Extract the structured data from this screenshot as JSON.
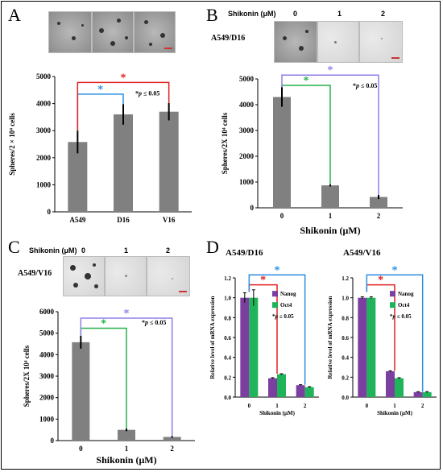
{
  "panels": {
    "A": {
      "letter": "A"
    },
    "B": {
      "letter": "B",
      "treatment_label": "Shikonin (μM)",
      "conc": [
        "0",
        "1",
        "2"
      ],
      "cell_line": "A549/D16"
    },
    "C": {
      "letter": "C",
      "treatment_label": "Shikonin (μM)",
      "conc": [
        "0",
        "1",
        "2"
      ],
      "cell_line": "A549/V16"
    },
    "D": {
      "letter": "D"
    }
  },
  "colors": {
    "bar": "#808080",
    "nanog": "#7b3fa0",
    "oct4": "#1fb35a",
    "red": "#e02020",
    "blue": "#2a8ee0",
    "green": "#25b24a",
    "violet": "#8f7ee8"
  },
  "chart_data": [
    {
      "id": "A",
      "type": "bar",
      "categories": [
        "A549",
        "D16",
        "V16"
      ],
      "values": [
        2580,
        3600,
        3700
      ],
      "errors": [
        420,
        380,
        320
      ],
      "ylabel": "Spheres/2 × 10⁴ cells",
      "ylim": [
        0,
        5000
      ],
      "yticks": [
        0,
        1000,
        2000,
        3000,
        4000,
        5000
      ],
      "annotation": "*p ≤ 0.05",
      "star": "*"
    },
    {
      "id": "B",
      "type": "bar",
      "categories": [
        "0",
        "1",
        "2"
      ],
      "values": [
        4300,
        870,
        420
      ],
      "errors": [
        380,
        40,
        80
      ],
      "ylabel": "Spheres/2X 10⁴ cells",
      "xlabel": "Shikonin (μM)",
      "ylim": [
        0,
        5000
      ],
      "yticks": [
        0,
        1000,
        2000,
        3000,
        4000,
        5000
      ],
      "annotation": "*p ≤ 0.05",
      "star": "*"
    },
    {
      "id": "C",
      "type": "bar",
      "categories": [
        "0",
        "1",
        "2"
      ],
      "values": [
        4580,
        500,
        170
      ],
      "errors": [
        300,
        60,
        40
      ],
      "ylabel": "Spheres/2X 10⁴ cells",
      "xlabel": "Shikonin (μM)",
      "ylim": [
        0,
        6000
      ],
      "yticks": [
        0,
        1000,
        2000,
        3000,
        4000,
        5000,
        6000
      ],
      "annotation": "*p ≤ 0.05",
      "star": "*"
    },
    {
      "id": "D1",
      "type": "bar",
      "title": "A549/D16",
      "categories": [
        "0",
        "1",
        "2"
      ],
      "series": [
        {
          "name": "Nanog",
          "values": [
            1.0,
            0.19,
            0.12
          ],
          "errors": [
            0.05,
            0.005,
            0.005
          ]
        },
        {
          "name": "Oct4",
          "values": [
            1.0,
            0.23,
            0.1
          ],
          "errors": [
            0.08,
            0.005,
            0.005
          ]
        }
      ],
      "ylabel": "Relative level of mRNA expression",
      "xlabel": "Shikonin (μM)",
      "ylim": [
        0,
        1.2
      ],
      "yticks": [
        "0.0",
        "0.2",
        "0.4",
        "0.6",
        "0.8",
        "1.0",
        "1.2"
      ],
      "annotation": "*p ≤ 0.05",
      "star": "*"
    },
    {
      "id": "D2",
      "type": "bar",
      "title": "A549/V16",
      "categories": [
        "0",
        "1",
        "2"
      ],
      "series": [
        {
          "name": "Nanog",
          "values": [
            1.0,
            0.26,
            0.05
          ],
          "errors": [
            0.01,
            0.005,
            0.005
          ]
        },
        {
          "name": "Oct4",
          "values": [
            1.0,
            0.19,
            0.05
          ],
          "errors": [
            0.01,
            0.005,
            0.005
          ]
        }
      ],
      "ylabel": "Relative level of mRNA expression",
      "xlabel": "Shikonin (μM)",
      "ylim": [
        0,
        1.2
      ],
      "yticks": [
        "0.0",
        "0.2",
        "0.4",
        "0.6",
        "0.8",
        "1.0",
        "1.2"
      ],
      "annotation": "*p ≤ 0.05",
      "star": "*"
    }
  ]
}
